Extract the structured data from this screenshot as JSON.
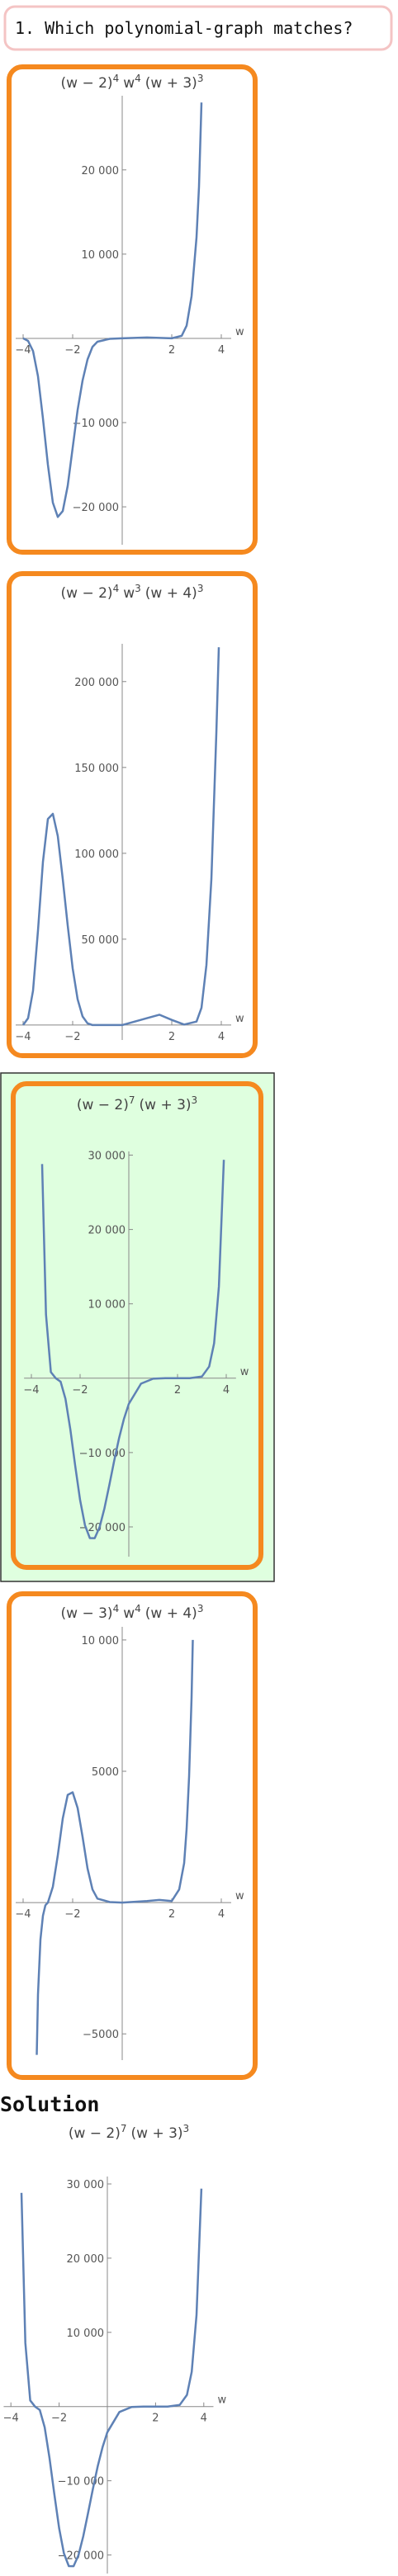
{
  "question": "1. Which polynomial-graph matches?",
  "plots": [
    {
      "type": "line",
      "title": [
        {
          "text": "(w − 2)",
          "sup": "4"
        },
        {
          "text": "w",
          "sup": "4"
        },
        {
          "text": "(w + 3)",
          "sup": "3"
        }
      ],
      "xlabel": "w",
      "color": "#5e81b5",
      "xlim": [
        -4.3,
        4.4
      ],
      "ylim": [
        -24500,
        28800
      ],
      "xticks": [
        {
          "value": -4,
          "label": "−4"
        },
        {
          "value": -2,
          "label": "−2"
        },
        2,
        4
      ],
      "yticks": [
        {
          "value": 20000,
          "label": "20 000"
        },
        {
          "value": 10000,
          "label": "10 000"
        },
        {
          "value": -10000,
          "label": "−10 000"
        },
        {
          "value": -20000,
          "label": "−20 000"
        }
      ],
      "x": [
        -4,
        -3.8,
        -3.6,
        -3.4,
        -3.2,
        -3,
        -2.8,
        -2.6,
        -2.4,
        -2.2,
        -2,
        -1.8,
        -1.6,
        -1.4,
        -1.2,
        -1,
        -0.5,
        0,
        1,
        2,
        2.4,
        2.6,
        2.8,
        3,
        3.1,
        3.2
      ],
      "values": [
        0,
        -300,
        -1500,
        -4500,
        -9500,
        -15000,
        -19500,
        -21200,
        -20500,
        -17500,
        -13000,
        -8500,
        -5000,
        -2500,
        -1000,
        -400,
        -50,
        0,
        100,
        0,
        300,
        1500,
        5000,
        12000,
        18000,
        28000
      ]
    },
    {
      "type": "line",
      "title": [
        {
          "text": "(w − 2)",
          "sup": "4"
        },
        {
          "text": "w",
          "sup": "3"
        },
        {
          "text": "(w + 4)",
          "sup": "3"
        }
      ],
      "xlabel": "w",
      "color": "#5e81b5",
      "xlim": [
        -4.3,
        4.4
      ],
      "ylim": [
        -8700,
        222000
      ],
      "xticks": [
        {
          "value": -4,
          "label": "−4"
        },
        {
          "value": -2,
          "label": "−2"
        },
        2,
        4
      ],
      "yticks": [
        {
          "value": 200000,
          "label": "200 000"
        },
        {
          "value": 150000,
          "label": "150 000"
        },
        {
          "value": 100000,
          "label": "100 000"
        },
        {
          "value": 50000,
          "label": "50 000"
        }
      ],
      "x": [
        -4,
        -3.8,
        -3.6,
        -3.4,
        -3.2,
        -3,
        -2.8,
        -2.6,
        -2.4,
        -2.2,
        -2,
        -1.8,
        -1.6,
        -1.4,
        -1.2,
        -1,
        0,
        1,
        1.5,
        2,
        2.5,
        3,
        3.2,
        3.4,
        3.6,
        3.8,
        3.9
      ],
      "values": [
        0,
        4000,
        20000,
        55000,
        95000,
        120000,
        123000,
        110000,
        85000,
        58000,
        33000,
        15000,
        5000,
        1000,
        0,
        0,
        0,
        4000,
        6000,
        3000,
        300,
        2000,
        10000,
        35000,
        85000,
        170000,
        220000
      ]
    },
    {
      "type": "line",
      "title": [
        {
          "text": "(w − 2)",
          "sup": "7"
        },
        {
          "text": "(w + 3)",
          "sup": "3"
        }
      ],
      "xlabel": "w",
      "color": "#5e81b5",
      "xlim": [
        -4.3,
        4.4
      ],
      "ylim": [
        -24000,
        30500
      ],
      "xticks": [
        {
          "value": -4,
          "label": "−4"
        },
        {
          "value": -2,
          "label": "−2"
        },
        2,
        4
      ],
      "yticks": [
        {
          "value": 30000,
          "label": "30 000"
        },
        {
          "value": 20000,
          "label": "20 000"
        },
        {
          "value": 10000,
          "label": "10 000"
        },
        {
          "value": -10000,
          "label": "−10 000"
        },
        {
          "value": -20000,
          "label": "−20 000"
        }
      ],
      "x": [
        -3.56,
        -3.4,
        -3.2,
        -3,
        -2.8,
        -2.6,
        -2.4,
        -2.2,
        -2,
        -1.8,
        -1.6,
        -1.4,
        -1.2,
        -1,
        -0.8,
        -0.6,
        -0.4,
        -0.2,
        0,
        0.5,
        1,
        1.5,
        2,
        2.5,
        3,
        3.3,
        3.5,
        3.7,
        3.9
      ],
      "values": [
        28800,
        8570,
        822,
        0,
        -470,
        -2789,
        -6897,
        -11800,
        -16384,
        -19770,
        -21500,
        -21510,
        -20040,
        -17496,
        -14370,
        -11100,
        -8062,
        -5474,
        -3456,
        -733,
        -64,
        -1,
        0,
        1,
        216,
        1568,
        4693,
        12340,
        29370
      ]
    },
    {
      "type": "line",
      "title": [
        {
          "text": "(w − 3)",
          "sup": "4"
        },
        {
          "text": "w",
          "sup": "4"
        },
        {
          "text": "(w + 4)",
          "sup": "3"
        }
      ],
      "xlabel": "w",
      "color": "#5e81b5",
      "xlim": [
        -4.3,
        4.4
      ],
      "ylim": [
        -6000,
        10500
      ],
      "xticks": [
        {
          "value": -4,
          "label": "−4"
        },
        {
          "value": -2,
          "label": "−2"
        },
        2,
        4
      ],
      "yticks": [
        {
          "value": 10000,
          "label": "10 000"
        },
        5000,
        {
          "value": -5000,
          "label": "−5000"
        }
      ],
      "x": [
        -3.45,
        -3.4,
        -3.3,
        -3.2,
        -3.1,
        -3,
        -2.8,
        -2.6,
        -2.4,
        -2.2,
        -2,
        -1.8,
        -1.6,
        -1.4,
        -1.2,
        -1,
        -0.5,
        0,
        1,
        1.5,
        2,
        2.3,
        2.5,
        2.6,
        2.7,
        2.8,
        2.85
      ],
      "values": [
        -5800,
        -3500,
        -1400,
        -500,
        -100,
        0,
        600,
        1800,
        3200,
        4100,
        4200,
        3600,
        2500,
        1300,
        500,
        150,
        20,
        0,
        60,
        100,
        60,
        500,
        1500,
        2800,
        4800,
        7800,
        10000
      ]
    }
  ],
  "solution_label": "Solution",
  "solution": {
    "type": "line",
    "title": [
      {
        "text": "(w − 2)",
        "sup": "7"
      },
      {
        "text": "(w + 3)",
        "sup": "3"
      }
    ],
    "xlabel": "w",
    "color": "#5e81b5",
    "xlim": [
      -4.3,
      4.4
    ],
    "ylim": [
      -22500,
      31000
    ],
    "xticks": [
      {
        "value": -4,
        "label": "−4"
      },
      {
        "value": -2,
        "label": "−2"
      },
      2,
      4
    ],
    "yticks": [
      {
        "value": 30000,
        "label": "30 000"
      },
      {
        "value": 20000,
        "label": "20 000"
      },
      {
        "value": 10000,
        "label": "10 000"
      },
      {
        "value": -10000,
        "label": "−10 000"
      },
      {
        "value": -20000,
        "label": "−20 000"
      }
    ],
    "x": [
      -3.56,
      -3.4,
      -3.2,
      -3,
      -2.8,
      -2.6,
      -2.4,
      -2.2,
      -2,
      -1.8,
      -1.6,
      -1.4,
      -1.2,
      -1,
      -0.8,
      -0.6,
      -0.4,
      -0.2,
      0,
      0.5,
      1,
      1.5,
      2,
      2.5,
      3,
      3.3,
      3.5,
      3.7,
      3.9
    ],
    "values": [
      28800,
      8570,
      822,
      0,
      -470,
      -2789,
      -6897,
      -11800,
      -16384,
      -19770,
      -21500,
      -21510,
      -20040,
      -17496,
      -14370,
      -11100,
      -8062,
      -5474,
      -3456,
      -733,
      -64,
      -1,
      0,
      1,
      216,
      1568,
      4693,
      12340,
      29370
    ]
  }
}
